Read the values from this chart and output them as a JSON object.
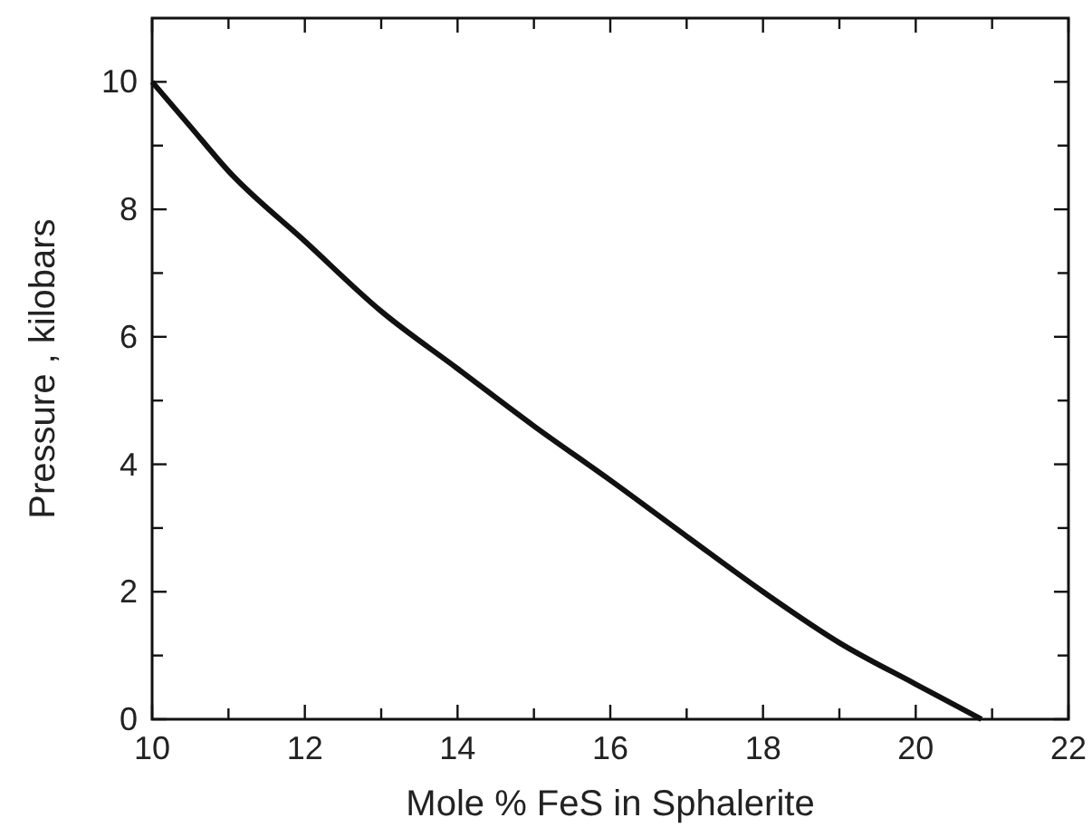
{
  "chart_data": {
    "type": "line",
    "xlabel": "Mole % FeS in Sphalerite",
    "ylabel": "Pressure , kilobars",
    "x": [
      10,
      10.5,
      11,
      12,
      13,
      14,
      15,
      16,
      17,
      18,
      19,
      20,
      20.86
    ],
    "series": [
      {
        "color": "#111111",
        "values": [
          10,
          9.3,
          8.6,
          7.5,
          6.4,
          5.5,
          4.6,
          3.75,
          2.87,
          2.0,
          1.2,
          0.55,
          0
        ]
      }
    ],
    "xlim": [
      10,
      22
    ],
    "ylim": [
      0,
      11
    ],
    "xticks": [
      10,
      {
        "value": 11,
        "label": null
      },
      12,
      {
        "value": 13,
        "label": null
      },
      14,
      {
        "value": 15,
        "label": null
      },
      16,
      {
        "value": 17,
        "label": null
      },
      18,
      {
        "value": 19,
        "label": null
      },
      20,
      {
        "value": 21,
        "label": null
      },
      22
    ],
    "yticks": [
      0,
      {
        "value": 1,
        "label": null
      },
      2,
      {
        "value": 3,
        "label": null
      },
      4,
      {
        "value": 5,
        "label": null
      },
      6,
      {
        "value": 7,
        "label": null
      },
      8,
      {
        "value": 9,
        "label": null
      },
      10
    ],
    "grid": false,
    "marker": "none",
    "line_style": "solid"
  }
}
